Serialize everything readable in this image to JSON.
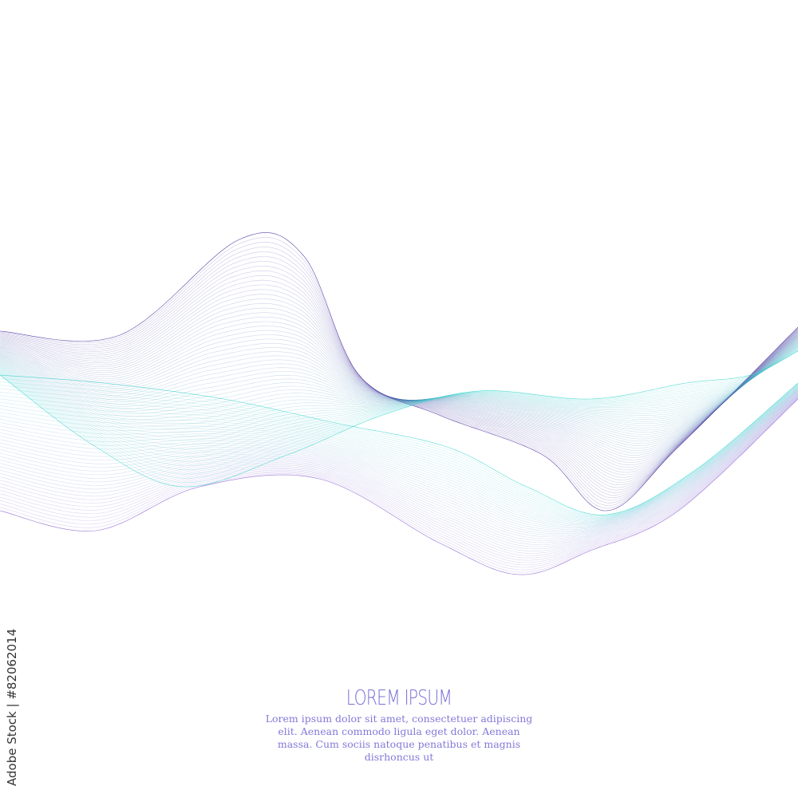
{
  "heading": "LOREM IPSUM",
  "paragraph": "Lorem ipsum dolor sit amet, consectetuer adipiscing elit. Aenean commodo ligula eget dolor. Aenean massa. Cum sociis natoque penatibus et magnis disrhoncus ut",
  "watermark": "Adobe Stock | #82062014",
  "colors": {
    "teal": "#3fd6cf",
    "purple": "#8a5fd0",
    "deep_purple": "#4b2f9e",
    "text": "#7b6fd6",
    "background": "#ffffff"
  }
}
